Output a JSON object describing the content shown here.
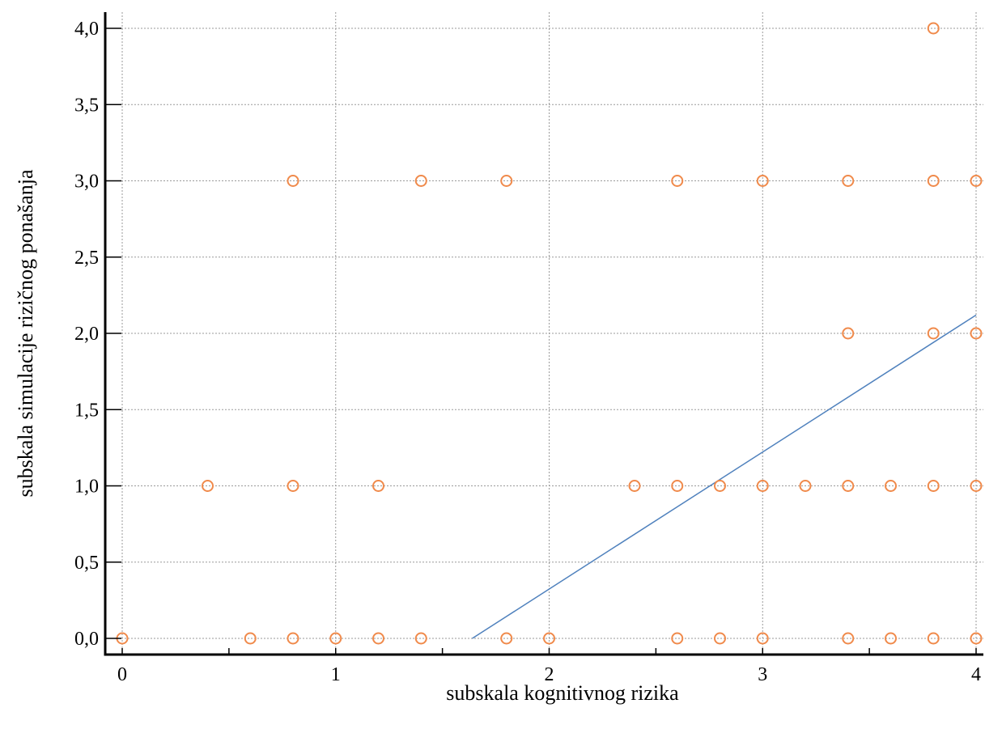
{
  "chart_data": {
    "type": "scatter",
    "xlabel": "subskala kognitivnog rizika",
    "ylabel": "subskala simulacije rizičnog ponašanja",
    "xlim": [
      -0.08,
      4.02
    ],
    "ylim": [
      -0.1,
      4.1
    ],
    "x_ticks": [
      0,
      1,
      2,
      3,
      4
    ],
    "x_tick_labels": [
      "0",
      "1",
      "2",
      "3",
      "4"
    ],
    "x_minor_ticks": [
      0.5,
      1.5,
      2.5,
      3.5
    ],
    "y_ticks": [
      0,
      0.5,
      1,
      1.5,
      2,
      2.5,
      3,
      3.5,
      4
    ],
    "y_tick_labels": [
      "0,0",
      "0,5",
      "1,0",
      "1,5",
      "2,0",
      "2,5",
      "3,0",
      "3,5",
      "4,0"
    ],
    "grid": true,
    "points": [
      {
        "x": 3.8,
        "y": 4.0
      },
      {
        "x": 0.8,
        "y": 3.0
      },
      {
        "x": 1.4,
        "y": 3.0
      },
      {
        "x": 1.8,
        "y": 3.0
      },
      {
        "x": 2.6,
        "y": 3.0
      },
      {
        "x": 3.0,
        "y": 3.0
      },
      {
        "x": 3.4,
        "y": 3.0
      },
      {
        "x": 3.8,
        "y": 3.0
      },
      {
        "x": 4.0,
        "y": 3.0
      },
      {
        "x": 3.4,
        "y": 2.0
      },
      {
        "x": 3.8,
        "y": 2.0
      },
      {
        "x": 4.0,
        "y": 2.0
      },
      {
        "x": 0.4,
        "y": 1.0
      },
      {
        "x": 0.8,
        "y": 1.0
      },
      {
        "x": 1.2,
        "y": 1.0
      },
      {
        "x": 2.4,
        "y": 1.0
      },
      {
        "x": 2.6,
        "y": 1.0
      },
      {
        "x": 2.8,
        "y": 1.0
      },
      {
        "x": 3.0,
        "y": 1.0
      },
      {
        "x": 3.2,
        "y": 1.0
      },
      {
        "x": 3.4,
        "y": 1.0
      },
      {
        "x": 3.6,
        "y": 1.0
      },
      {
        "x": 3.8,
        "y": 1.0
      },
      {
        "x": 4.0,
        "y": 1.0
      },
      {
        "x": 0.0,
        "y": 0.0
      },
      {
        "x": 0.6,
        "y": 0.0
      },
      {
        "x": 0.8,
        "y": 0.0
      },
      {
        "x": 1.0,
        "y": 0.0
      },
      {
        "x": 1.2,
        "y": 0.0
      },
      {
        "x": 1.4,
        "y": 0.0
      },
      {
        "x": 1.8,
        "y": 0.0
      },
      {
        "x": 2.0,
        "y": 0.0
      },
      {
        "x": 2.6,
        "y": 0.0
      },
      {
        "x": 2.8,
        "y": 0.0
      },
      {
        "x": 3.0,
        "y": 0.0
      },
      {
        "x": 3.4,
        "y": 0.0
      },
      {
        "x": 3.6,
        "y": 0.0
      },
      {
        "x": 3.8,
        "y": 0.0
      },
      {
        "x": 4.0,
        "y": 0.0
      }
    ],
    "regression_line": {
      "x1": 1.64,
      "y1": 0.0,
      "x2": 4.0,
      "y2": 2.12
    },
    "colors": {
      "points": "#f08a4b",
      "line": "#4f81bd",
      "grid": "#9a9a9a",
      "axis": "#000000"
    }
  }
}
